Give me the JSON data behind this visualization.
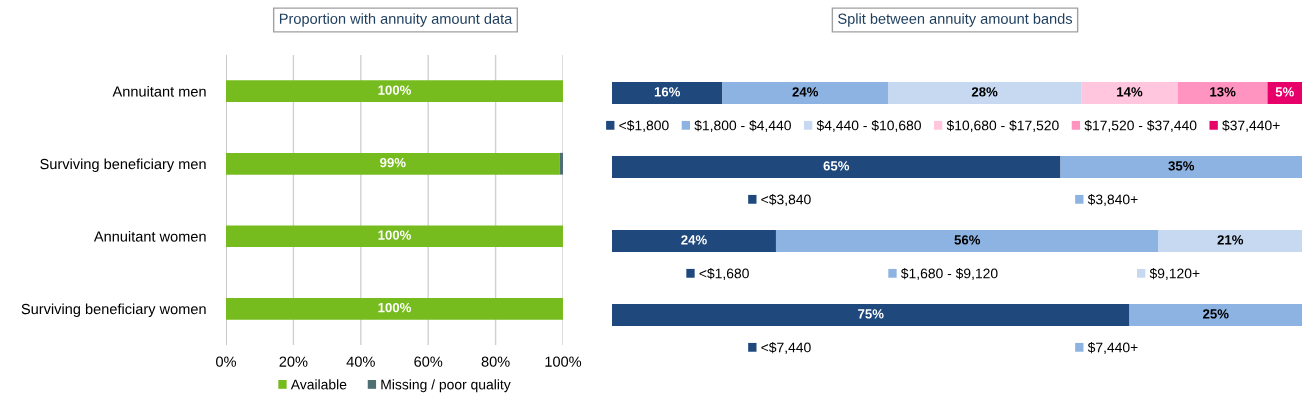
{
  "chart_data": [
    {
      "type": "bar",
      "orientation": "horizontal",
      "stacked": true,
      "title": "Proportion with annuity amount data",
      "categories": [
        "Annuitant men",
        "Surviving beneficiary men",
        "Annuitant women",
        "Surviving beneficiary women"
      ],
      "series": [
        {
          "name": "Available",
          "color": "#77bc1f",
          "values": [
            100,
            99,
            100,
            100
          ],
          "value_labels": [
            "100%",
            "99%",
            "100%",
            "100%"
          ]
        },
        {
          "name": "Missing / poor quality",
          "color": "#4f6f73",
          "values": [
            0,
            1,
            0,
            0
          ]
        }
      ],
      "xlim": [
        0,
        100
      ],
      "xticks": [
        {
          "value": 0,
          "label": "0%"
        },
        {
          "value": 20,
          "label": "20%"
        },
        {
          "value": 40,
          "label": "40%"
        },
        {
          "value": 60,
          "label": "60%"
        },
        {
          "value": 80,
          "label": "80%"
        },
        {
          "value": 100,
          "label": "100%"
        }
      ],
      "grid": "x",
      "legend": "bottom"
    },
    {
      "type": "bar",
      "orientation": "horizontal",
      "stacked": true,
      "title": "Split between annuity amount bands",
      "categories": [
        null
      ],
      "tick_labels": false,
      "legend": "bottom",
      "series": [
        {
          "name": "<$1,800",
          "color": "#1f487c",
          "values": [
            16
          ],
          "value_labels": [
            "16%"
          ]
        },
        {
          "name": "$1,800 - $4,440",
          "color": "#8db3e2",
          "values": [
            24
          ],
          "value_labels": [
            "24%"
          ]
        },
        {
          "name": "$4,440 - $10,680",
          "color": "#c6d9f0",
          "values": [
            28
          ],
          "value_labels": [
            "28%"
          ]
        },
        {
          "name": "$10,680 - $17,520",
          "color": "#ffc6de",
          "values": [
            14
          ],
          "value_labels": [
            "14%"
          ]
        },
        {
          "name": "$17,520 - $37,440",
          "color": "#ff94c0",
          "values": [
            13
          ],
          "value_labels": [
            "13%"
          ]
        },
        {
          "name": "$37,440+",
          "color": "#e8006a",
          "values": [
            5
          ],
          "value_labels": [
            "5%"
          ]
        }
      ]
    },
    {
      "type": "bar",
      "orientation": "horizontal",
      "stacked": true,
      "categories": [
        null
      ],
      "tick_labels": false,
      "legend": "bottom",
      "series": [
        {
          "name": "<$3,840",
          "color": "#1f487c",
          "values": [
            65
          ],
          "value_labels": [
            "65%"
          ]
        },
        {
          "name": "$3,840+",
          "color": "#8db3e2",
          "values": [
            35
          ],
          "value_labels": [
            "35%"
          ]
        }
      ]
    },
    {
      "type": "bar",
      "orientation": "horizontal",
      "stacked": true,
      "categories": [
        null
      ],
      "tick_labels": false,
      "legend": "bottom",
      "series": [
        {
          "name": "<$1,680",
          "color": "#1f487c",
          "values": [
            24
          ],
          "value_labels": [
            "24%"
          ]
        },
        {
          "name": "$1,680 - $9,120",
          "color": "#8db3e2",
          "values": [
            56
          ],
          "value_labels": [
            "56%"
          ]
        },
        {
          "name": "$9,120+",
          "color": "#c6d9f0",
          "values": [
            21
          ],
          "value_labels": [
            "21%"
          ]
        }
      ]
    },
    {
      "type": "bar",
      "orientation": "horizontal",
      "stacked": true,
      "categories": [
        null
      ],
      "tick_labels": false,
      "legend": "bottom",
      "series": [
        {
          "name": "<$7,440",
          "color": "#1f487c",
          "values": [
            75
          ],
          "value_labels": [
            "75%"
          ]
        },
        {
          "name": "$7,440+",
          "color": "#8db3e2",
          "values": [
            25
          ],
          "value_labels": [
            "25%"
          ]
        }
      ]
    }
  ]
}
